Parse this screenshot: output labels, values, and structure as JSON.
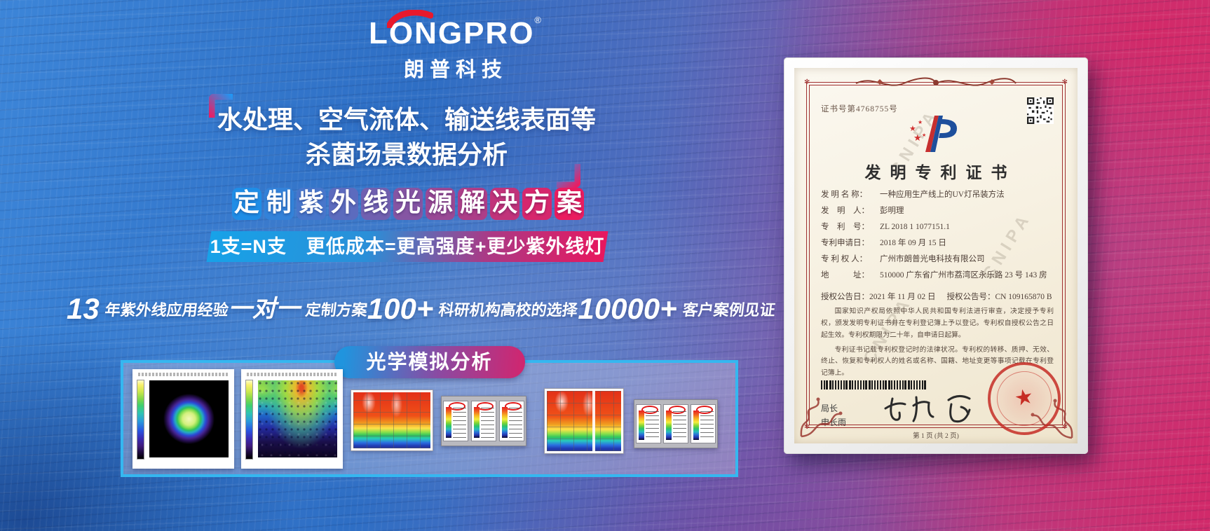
{
  "brand": {
    "logo_text": "LONGPRO",
    "logo_registered": "®",
    "logo_cn": "朗普科技"
  },
  "headline": {
    "line1": "水处理、空气流体、输送线表面等",
    "line2": "杀菌场景数据分析"
  },
  "solution": {
    "title": "定制紫外线光源解决方案",
    "subtitle": "1支=N支　更低成本=更高强度+更少紫外线灯",
    "tile_color_start": "#1f8de6",
    "tile_color_end": "#ea1c5f"
  },
  "stats": [
    {
      "value": "13",
      "label": "年紫外线应用经验"
    },
    {
      "value": "一对一",
      "label": "定制方案"
    },
    {
      "value": "100+",
      "label": "科研机构高校的选择"
    },
    {
      "value": "10000+",
      "label": "客户案例见证"
    }
  ],
  "simulation": {
    "badge_label": "光学模拟分析",
    "images": [
      {
        "name": "radial-irradiance-map"
      },
      {
        "name": "scatter-irradiance-map"
      },
      {
        "name": "surface-heatmap-small"
      },
      {
        "name": "colorbar-scale-panel"
      },
      {
        "name": "surface-heatmap-wide"
      },
      {
        "name": "colorbar-scale-panel-2"
      }
    ]
  },
  "certificate": {
    "cert_no": "证书号第4768755号",
    "title": "发明专利证书",
    "watermark": "CNIPA",
    "fields": [
      {
        "label": "发 明 名 称：",
        "value": "一种应用生产线上的UV灯吊装方法"
      },
      {
        "label": "发　明　人：",
        "value": "彭明理"
      },
      {
        "label": "专　利　号：",
        "value": "ZL 2018 1 1077151.1"
      },
      {
        "label": "专利申请日：",
        "value": "2018 年 09 月 15 日"
      },
      {
        "label": "专 利 权 人：",
        "value": "广州市朗普光电科技有限公司"
      },
      {
        "label": "地　　　址：",
        "value": "510000 广东省广州市荔湾区永乐路 23 号 143 房"
      }
    ],
    "grant_date": "授权公告日：2021 年 11 月 02 日",
    "grant_no": "授权公告号：CN 109165870 B",
    "para1": "国家知识产权局依照中华人民共和国专利法进行审查，决定授予专利权，颁发发明专利证书并在专利登记簿上予以登记。专利权自授权公告之日起生效。专利权期限为二十年，自申请日起算。",
    "para2": "专利证书记载专利权登记时的法律状况。专利权的转移、质押、无效、终止、恢复和专利权人的姓名或名称、国籍、地址变更等事项记载在专利登记簿上。",
    "officer_title": "局长",
    "officer_name": "申长雨",
    "page_footer": "第 1 页 (共 2 页)"
  },
  "colors": {
    "accent_blue": "#1e96dd",
    "accent_pink": "#e8175e",
    "badge_magenta": "#d2256e",
    "panel_border": "#35b7f0",
    "logo_red": "#e8192c",
    "cert_border_red": "#a03030",
    "seal_red": "#c62d24"
  }
}
